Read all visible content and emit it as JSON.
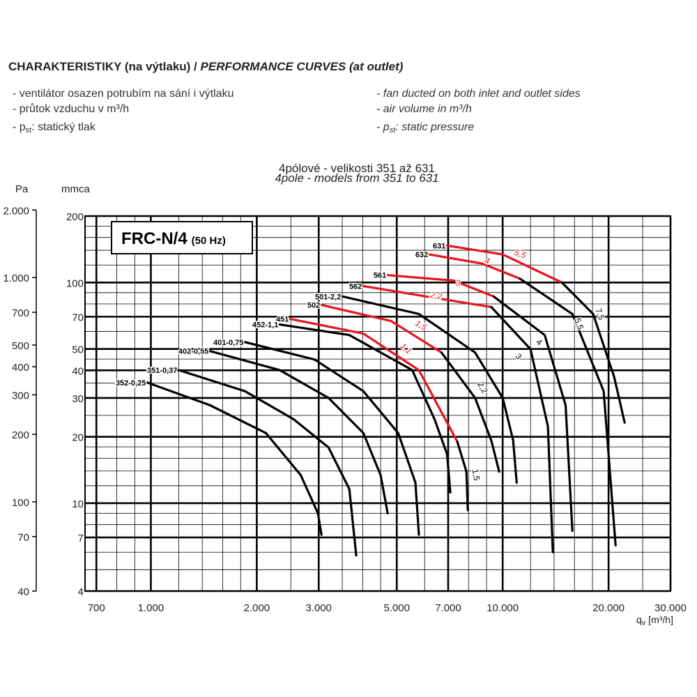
{
  "header": {
    "title": "CHARAKTERISTIKY (na výtlaku) / ",
    "title_en": "PERFORMANCE CURVES (at outlet)"
  },
  "notes_left": [
    "- ventilátor osazen potrubím na sání i výtlaku",
    "- průtok vzduchu v m³/h",
    {
      "prefix": "- p",
      "sub": "st",
      "text": ": statický tlak"
    }
  ],
  "notes_right": [
    "- fan ducted on both inlet and outlet sides",
    "- air volume in m³/h",
    {
      "prefix": "- p",
      "sub": "st",
      "text": ": static pressure"
    }
  ],
  "subtitle": "4pólové - velikosti 351 až 631",
  "subtitle_en": "4pole - models from 351 to 631",
  "chart_data": {
    "type": "line",
    "model": "FRC-N/4",
    "model_note": "(50 Hz)",
    "y_label": "mmca",
    "y2_label": "Pa",
    "x_label": {
      "symbol": "q",
      "sub": "v",
      "text": " [m³/h]"
    },
    "log_x": true,
    "log_y": true,
    "grid": true,
    "xlim": [
      650,
      30000
    ],
    "ylim": [
      4,
      200
    ],
    "y2lim": [
      40,
      1880
    ],
    "xticks": [
      700,
      {
        "value": 1000,
        "label": "1.000"
      },
      {
        "value": 2000,
        "label": "2.000"
      },
      {
        "value": 3000,
        "label": "3.000"
      },
      {
        "value": 5000,
        "label": "5.000"
      },
      {
        "value": 7000,
        "label": "7.000"
      },
      {
        "value": 10000,
        "label": "10.000"
      },
      {
        "value": 20000,
        "label": "20.000"
      },
      {
        "value": 30000,
        "label": "30.000"
      }
    ],
    "yticks": [
      4,
      7,
      10,
      20,
      30,
      40,
      50,
      70,
      100,
      200
    ],
    "y2ticks": [
      40,
      70,
      100,
      200,
      300,
      400,
      500,
      700,
      {
        "value": 1000,
        "label": "1.000"
      },
      {
        "value": 2000,
        "label": "2.000"
      }
    ],
    "x_grid": [
      700,
      800,
      900,
      1000,
      1200,
      1400,
      1600,
      1800,
      2000,
      2500,
      3000,
      3500,
      4000,
      4500,
      5000,
      6000,
      7000,
      8000,
      9000,
      10000,
      12000,
      14000,
      16000,
      18000,
      20000,
      25000,
      30000
    ],
    "y_grid": [
      4,
      5,
      6,
      7,
      8,
      9,
      10,
      12,
      14,
      16,
      18,
      20,
      25,
      30,
      35,
      40,
      45,
      50,
      60,
      70,
      80,
      90,
      100,
      120,
      140,
      160,
      180,
      200
    ],
    "series": [
      {
        "name": "352-0,25",
        "color": "#000000",
        "x": [
          977,
          1473,
          2123,
          2667,
          2985,
          3054
        ],
        "values": [
          35.2,
          27.8,
          20.8,
          13.4,
          9.0,
          7.2
        ]
      },
      {
        "name": "351-0,37",
        "color": "#000000",
        "x": [
          1200,
          1851,
          2547,
          3199,
          3666,
          3835
        ],
        "values": [
          40.1,
          32.2,
          24.0,
          17.9,
          11.6,
          5.8
        ]
      },
      {
        "name": "402-0,55",
        "color": "#000000",
        "x": [
          1473,
          2324,
          3199,
          4018,
          4500,
          4712
        ],
        "values": [
          48.9,
          40.1,
          30.0,
          20.8,
          13.4,
          9.0
        ]
      },
      {
        "name": "401-0,75",
        "color": "#000000",
        "x": [
          1851,
          2919,
          4018,
          5047,
          5650,
          5781
        ],
        "values": [
          53.7,
          44.8,
          32.2,
          20.8,
          12.4,
          7.2
        ]
      },
      {
        "name": "452-1,1",
        "color": "#000000",
        "x": [
          2324,
          3666,
          5531,
          6404,
          6950,
          7100
        ],
        "values": [
          64.5,
          57.8,
          40.1,
          24.0,
          16.7,
          11.2
        ]
      },
      {
        "name": "451",
        "color": "#e8141b",
        "x": [
          2489,
          4018,
          5781,
          7432
        ],
        "values": [
          68.4,
          58.7,
          40.1,
          19.0
        ]
      },
      {
        "color": "#000000",
        "x": [
          7432,
          7888,
          7962
        ],
        "values": [
          19.0,
          13.9,
          9.3
        ]
      },
      {
        "name": "502",
        "color": "#e8141b",
        "x": [
          3057,
          4820,
          6697
        ],
        "values": [
          79.1,
          66.9,
          48.2
        ]
      },
      {
        "color": "#000000",
        "x": [
          6697,
          8350,
          9290,
          9776
        ],
        "values": [
          48.2,
          30.0,
          19.2,
          13.9
        ]
      },
      {
        "name": "501-2,2",
        "color": "#000000",
        "x": [
          3505,
          5781,
          8350,
          10000,
          10710,
          10963
        ],
        "values": [
          86.5,
          72.0,
          48.2,
          30.0,
          19.3,
          12.4
        ]
      },
      {
        "name": "562",
        "color": "#e8141b",
        "x": [
          4018,
          6053,
          9290
        ],
        "values": [
          96.4,
          86.5,
          77.4
        ]
      },
      {
        "color": "#000000",
        "x": [
          9290,
          11995,
          13450,
          13890
        ],
        "values": [
          77.4,
          49.9,
          22.3,
          6.0
        ]
      },
      {
        "name": "561",
        "color": "#e8141b",
        "x": [
          4712,
          7266,
          9427
        ],
        "values": [
          108,
          102,
          86.5
        ]
      },
      {
        "color": "#000000",
        "x": [
          9427,
          13170,
          15100,
          15780
        ],
        "values": [
          86.5,
          57.8,
          27.8,
          7.5
        ]
      },
      {
        "name": "632",
        "color": "#e8141b",
        "x": [
          6194,
          8724,
          11206
        ],
        "values": [
          134,
          122,
          104
        ]
      },
      {
        "color": "#000000",
        "x": [
          11206,
          15780,
          19370,
          20940
        ],
        "values": [
          104,
          72.0,
          32.2,
          6.45
        ]
      },
      {
        "name": "631",
        "color": "#e8141b",
        "x": [
          6950,
          10000,
          14730
        ],
        "values": [
          147,
          134,
          100
        ]
      },
      {
        "color": "#000000",
        "x": [
          14730,
          18080,
          20750,
          22220
        ],
        "values": [
          100,
          72.0,
          37.3,
          23.2
        ]
      }
    ],
    "annotations": [
      {
        "text": "5,5",
        "color": "#e8141b"
      },
      {
        "text": "4",
        "color": "#e8141b"
      },
      {
        "text": "3",
        "color": "#e8141b"
      },
      {
        "text": "2,2",
        "color": "#e8141b"
      },
      {
        "text": "1,5",
        "color": "#e8141b"
      },
      {
        "text": "1,1",
        "color": "#e8141b"
      },
      {
        "text": "7,5",
        "color": "#000000"
      },
      {
        "text": "5,5",
        "color": "#000000"
      },
      {
        "text": "4",
        "color": "#000000"
      },
      {
        "text": "3",
        "color": "#000000"
      },
      {
        "text": "2,2",
        "color": "#000000"
      },
      {
        "text": "1,5",
        "color": "#000000"
      }
    ]
  }
}
